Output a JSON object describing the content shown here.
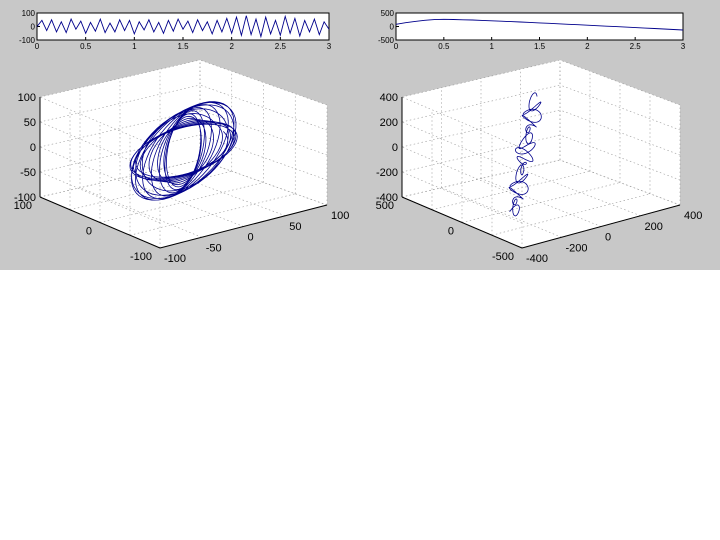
{
  "figure": {
    "background": "#c8c8c8",
    "line_color": "#00008b"
  },
  "chart_data": [
    {
      "type": "line",
      "id": "top-left",
      "xlim": [
        0,
        3
      ],
      "ylim": [
        -100,
        100
      ],
      "x_ticks": [
        "0",
        "0.5",
        "1",
        "1.5",
        "2",
        "2.5",
        "3"
      ],
      "y_ticks": [
        "100",
        "0",
        "-100"
      ],
      "series": [
        {
          "x": [
            0.0,
            0.05,
            0.1,
            0.15,
            0.2,
            0.25,
            0.3,
            0.35,
            0.4,
            0.45,
            0.5,
            0.55,
            0.6,
            0.65,
            0.7,
            0.75,
            0.8,
            0.85,
            0.9,
            0.95,
            1.0,
            1.05,
            1.1,
            1.15,
            1.2,
            1.25,
            1.3,
            1.35,
            1.4,
            1.45,
            1.5,
            1.55,
            1.6,
            1.65,
            1.7,
            1.75,
            1.8,
            1.85,
            1.9,
            1.95,
            2.0,
            2.05,
            2.1,
            2.15,
            2.2,
            2.25,
            2.3,
            2.35,
            2.4,
            2.45,
            2.5,
            2.55,
            2.6,
            2.65,
            2.7,
            2.75,
            2.8,
            2.85,
            2.9,
            2.95,
            3.0
          ],
          "y": [
            0,
            45,
            -30,
            50,
            -40,
            35,
            -45,
            55,
            -20,
            40,
            -50,
            30,
            -35,
            55,
            -45,
            25,
            -40,
            50,
            -30,
            45,
            -55,
            35,
            -25,
            50,
            -40,
            30,
            -50,
            45,
            -35,
            55,
            -20,
            40,
            -45,
            50,
            -30,
            35,
            -55,
            45,
            -40,
            60,
            -50,
            70,
            -65,
            80,
            -60,
            55,
            -75,
            70,
            -55,
            45,
            -65,
            75,
            -50,
            60,
            -70,
            45,
            -40,
            55,
            -60,
            35,
            -20
          ]
        }
      ]
    },
    {
      "type": "line",
      "id": "top-right",
      "xlim": [
        0,
        3
      ],
      "ylim": [
        -500,
        500
      ],
      "x_ticks": [
        "0",
        "0.5",
        "1",
        "1.5",
        "2",
        "2.5",
        "3"
      ],
      "y_ticks": [
        "500",
        "0",
        "-500"
      ],
      "series": [
        {
          "x": [
            0.0,
            0.1,
            0.2,
            0.3,
            0.4,
            0.5,
            0.6,
            0.7,
            0.8,
            0.9,
            1.0,
            1.1,
            1.2,
            1.3,
            1.4,
            1.5,
            1.6,
            1.7,
            1.8,
            1.9,
            2.0,
            2.1,
            2.2,
            2.3,
            2.4,
            2.5,
            2.6,
            2.7,
            2.8,
            2.9,
            3.0
          ],
          "y": [
            80,
            140,
            190,
            230,
            255,
            265,
            260,
            250,
            240,
            225,
            210,
            195,
            180,
            165,
            150,
            135,
            118,
            100,
            82,
            65,
            48,
            30,
            12,
            -5,
            -22,
            -40,
            -58,
            -75,
            -92,
            -110,
            -128
          ]
        }
      ]
    },
    {
      "type": "line",
      "id": "bottom-left-3d",
      "axis_range": [
        -100,
        100
      ],
      "x_ticks": [
        "-100",
        "-50",
        "0",
        "50",
        "100"
      ],
      "y_ticks": [
        "-100",
        "0",
        "100"
      ],
      "z_ticks": [
        "100",
        "50",
        "0",
        "-50",
        "-100"
      ],
      "trajectory": {
        "turns": 18,
        "amplitude_x": [
          18,
          60
        ],
        "amplitude_y": [
          20,
          55
        ],
        "amplitude_z": [
          25,
          75
        ]
      }
    },
    {
      "type": "line",
      "id": "bottom-right-3d",
      "axis_range": [
        -500,
        500
      ],
      "x_ticks": [
        "-400",
        "-200",
        "0",
        "200",
        "400"
      ],
      "y_ticks": [
        "-500",
        "0",
        "500"
      ],
      "z_ticks": [
        "400",
        "200",
        "0",
        "-200",
        "-400"
      ],
      "trajectory": {
        "start": [
          -400,
          -300,
          -300
        ],
        "end": [
          150,
          250,
          330
        ],
        "wiggle": 35
      }
    }
  ]
}
